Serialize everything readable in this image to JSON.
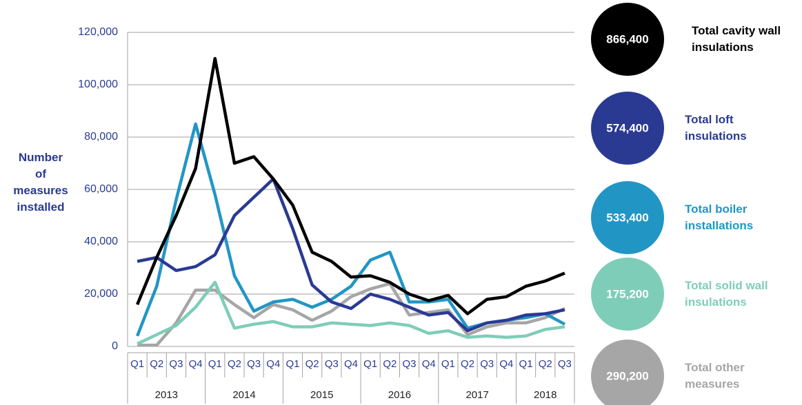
{
  "chart_data": {
    "type": "line",
    "y_label": "Number\nof\nmeasures\ninstalled",
    "categories": [
      "Q1",
      "Q2",
      "Q3",
      "Q4",
      "Q1",
      "Q2",
      "Q3",
      "Q4",
      "Q1",
      "Q2",
      "Q3",
      "Q4",
      "Q1",
      "Q2",
      "Q3",
      "Q4",
      "Q1",
      "Q2",
      "Q3",
      "Q4",
      "Q1",
      "Q2",
      "Q3"
    ],
    "groups": [
      {
        "label": "2013",
        "size": 4
      },
      {
        "label": "2014",
        "size": 4
      },
      {
        "label": "2015",
        "size": 4
      },
      {
        "label": "2016",
        "size": 4
      },
      {
        "label": "2017",
        "size": 4
      },
      {
        "label": "2018",
        "size": 3
      }
    ],
    "ylim": [
      0,
      120000
    ],
    "yticks": [
      0,
      {
        "value": 20000,
        "label": "20,000"
      },
      {
        "value": 40000,
        "label": "40,000"
      },
      {
        "value": 60000,
        "label": "60,000"
      },
      {
        "value": 80000,
        "label": "80,000"
      },
      {
        "value": 100000,
        "label": "100,000"
      },
      {
        "value": 120000,
        "label": "120,000"
      }
    ],
    "grid": true,
    "series": [
      {
        "name": "Total cavity wall\ninsulations",
        "total": "866,400",
        "color": "#000000",
        "values": [
          16000,
          34000,
          50000,
          68000,
          110000,
          70000,
          72500,
          64000,
          54000,
          36000,
          32500,
          26500,
          27000,
          24500,
          20000,
          17500,
          19500,
          12500,
          18000,
          19000,
          23000,
          25000,
          28000
        ]
      },
      {
        "name": "Total loft\ninsulations",
        "total": "574,400",
        "color": "#2a3a93",
        "values": [
          32500,
          34000,
          29000,
          30500,
          35000,
          50000,
          57000,
          64000,
          45000,
          23500,
          17000,
          14500,
          20000,
          18000,
          15000,
          12000,
          13000,
          6000,
          9000,
          10000,
          12000,
          12500,
          14000
        ]
      },
      {
        "name": "Total boiler\ninstallations",
        "total": "533,400",
        "color": "#2196c5",
        "values": [
          4000,
          23000,
          56000,
          85000,
          58000,
          27000,
          13500,
          17000,
          18000,
          15000,
          18000,
          23000,
          33000,
          36000,
          17000,
          17000,
          18000,
          7000,
          9000,
          10000,
          11000,
          12500,
          8500
        ]
      },
      {
        "name": "Total solid wall\ninsulations",
        "total": "175,200",
        "color": "#7ecdb9",
        "values": [
          1000,
          4500,
          8000,
          15000,
          24500,
          7000,
          8500,
          9500,
          7500,
          7500,
          9000,
          8500,
          8000,
          9000,
          8000,
          5000,
          6000,
          3500,
          4000,
          3500,
          4000,
          6500,
          7500
        ]
      },
      {
        "name": "Total other\nmeasures",
        "total": "290,200",
        "color": "#a6a6a6",
        "values": [
          500,
          500,
          9000,
          21500,
          21500,
          16000,
          11000,
          16000,
          14000,
          10000,
          13500,
          19000,
          22000,
          24000,
          12000,
          13000,
          14000,
          4500,
          7500,
          9000,
          9000,
          11000,
          14500
        ]
      }
    ]
  }
}
